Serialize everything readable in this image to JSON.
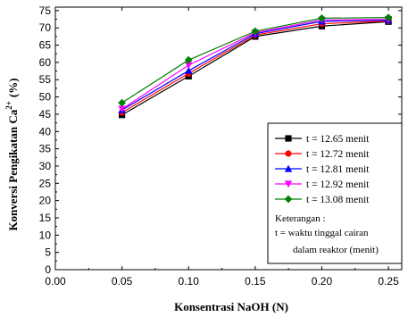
{
  "chart_data": {
    "type": "line",
    "xlabel": "Konsentrasi NaOH (N)",
    "ylabel": "Konversi Pengikatan Ca",
    "ylabel_sup": "2+",
    "ylabel_unit": "(%)",
    "xlim": [
      0.0,
      0.26
    ],
    "ylim": [
      0,
      76
    ],
    "x_ticks": [
      "0.00",
      "0.05",
      "0.10",
      "0.15",
      "0.20",
      "0.25"
    ],
    "y_ticks": [
      "0",
      "5",
      "10",
      "15",
      "20",
      "25",
      "30",
      "35",
      "40",
      "45",
      "50",
      "55",
      "60",
      "65",
      "70",
      "75"
    ],
    "x": [
      0.05,
      0.1,
      0.15,
      0.2,
      0.25
    ],
    "legend_position": "right",
    "series": [
      {
        "name": "t = 12.65 menit",
        "color": "#000000",
        "marker": "square",
        "values": [
          44.8,
          56.0,
          67.5,
          70.5,
          71.8
        ]
      },
      {
        "name": "t = 12.72 menit",
        "color": "#ff0000",
        "marker": "circle",
        "values": [
          45.5,
          56.8,
          67.9,
          71.2,
          72.0
        ]
      },
      {
        "name": "t = 12.81 menit",
        "color": "#0000ff",
        "marker": "triangle",
        "values": [
          46.2,
          57.6,
          68.3,
          71.9,
          72.2
        ]
      },
      {
        "name": "t = 12.92 menit",
        "color": "#ff00ff",
        "marker": "triangle-down",
        "values": [
          46.5,
          59.2,
          68.6,
          72.3,
          72.5
        ]
      },
      {
        "name": "t = 13.08 menit",
        "color": "#008000",
        "marker": "diamond",
        "values": [
          48.3,
          60.7,
          69.0,
          72.8,
          73.0
        ]
      }
    ],
    "note": {
      "title": "Keterangan :",
      "line1": "t = waktu tinggal cairan",
      "line2": "dalam reaktor (menit)"
    }
  }
}
